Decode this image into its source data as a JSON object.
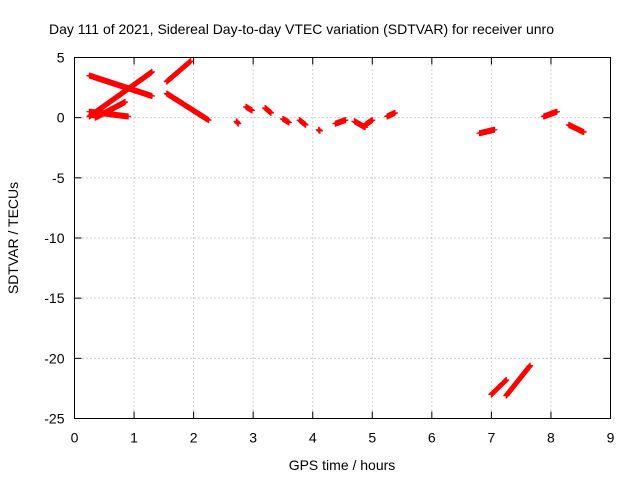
{
  "chart_data": {
    "type": "scatter",
    "title": "Day 111 of 2021, Sidereal Day-to-day VTEC variation (SDTVAR) for receiver unro",
    "xlabel": "GPS time / hours",
    "ylabel": "SDTVAR / TECUs",
    "xlim": [
      0,
      9
    ],
    "ylim": [
      -25,
      5
    ],
    "xticks": [
      0,
      1,
      2,
      3,
      4,
      5,
      6,
      7,
      8,
      9
    ],
    "yticks": [
      5,
      0,
      -5,
      -10,
      -15,
      -20,
      -25
    ],
    "grid": true,
    "marker": "plus",
    "color": "#ff0000",
    "segments": [
      {
        "x": [
          0.25,
          1.3
        ],
        "y": [
          3.5,
          1.8
        ]
      },
      {
        "x": [
          0.25,
          1.3
        ],
        "y": [
          0.1,
          3.8
        ]
      },
      {
        "x": [
          0.25,
          0.9
        ],
        "y": [
          0.5,
          0.1
        ]
      },
      {
        "x": [
          0.35,
          0.85
        ],
        "y": [
          0.0,
          1.3
        ]
      },
      {
        "x": [
          1.55,
          1.95
        ],
        "y": [
          3.0,
          4.7
        ]
      },
      {
        "x": [
          1.55,
          2.25
        ],
        "y": [
          2.0,
          -0.2
        ]
      },
      {
        "x": [
          2.72,
          2.75
        ],
        "y": [
          -0.3,
          -0.5
        ]
      },
      {
        "x": [
          2.88,
          2.98
        ],
        "y": [
          0.9,
          0.6
        ]
      },
      {
        "x": [
          3.2,
          3.3
        ],
        "y": [
          0.8,
          0.4
        ]
      },
      {
        "x": [
          3.5,
          3.6
        ],
        "y": [
          -0.1,
          -0.4
        ]
      },
      {
        "x": [
          3.78,
          3.88
        ],
        "y": [
          -0.2,
          -0.6
        ]
      },
      {
        "x": [
          4.1,
          4.12
        ],
        "y": [
          -1.0,
          -1.1
        ]
      },
      {
        "x": [
          4.38,
          4.55
        ],
        "y": [
          -0.5,
          -0.2
        ]
      },
      {
        "x": [
          4.7,
          4.88
        ],
        "y": [
          -0.3,
          -0.8
        ]
      },
      {
        "x": [
          4.88,
          5.0
        ],
        "y": [
          -0.6,
          -0.2
        ]
      },
      {
        "x": [
          5.25,
          5.38
        ],
        "y": [
          0.1,
          0.4
        ]
      },
      {
        "x": [
          6.8,
          7.05
        ],
        "y": [
          -1.3,
          -1.0
        ]
      },
      {
        "x": [
          7.0,
          7.25
        ],
        "y": [
          -23.0,
          -21.8
        ]
      },
      {
        "x": [
          7.25,
          7.65
        ],
        "y": [
          -23.1,
          -20.6
        ]
      },
      {
        "x": [
          7.88,
          8.1
        ],
        "y": [
          0.1,
          0.5
        ]
      },
      {
        "x": [
          8.3,
          8.55
        ],
        "y": [
          -0.6,
          -1.2
        ]
      }
    ]
  }
}
